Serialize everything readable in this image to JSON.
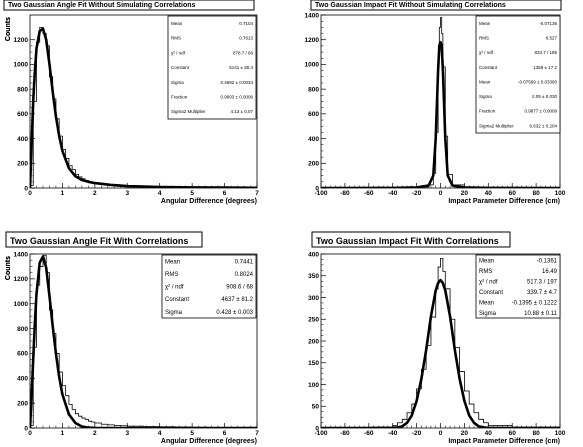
{
  "chart_data": [
    {
      "type": "histogram",
      "title": "Two Gaussian Angle Fit Without Simulating Correlations",
      "xlabel": "Angular Difference (degrees)",
      "ylabel": "Counts",
      "xlim": [
        0,
        7
      ],
      "ylim": [
        0,
        1400
      ],
      "xticks": [
        0,
        1,
        2,
        3,
        4,
        5,
        6,
        7
      ],
      "yticks": [
        0,
        200,
        400,
        600,
        800,
        1000,
        1200
      ],
      "series": [
        {
          "name": "data",
          "x": [
            0.0,
            0.1,
            0.2,
            0.3,
            0.4,
            0.5,
            0.6,
            0.7,
            0.8,
            0.9,
            1.0,
            1.1,
            1.2,
            1.3,
            1.4,
            1.5,
            1.6,
            1.7,
            1.8,
            1.9,
            2.0,
            2.2,
            2.4,
            2.6,
            2.8,
            3.0,
            3.5,
            4.0,
            4.5,
            5.0,
            5.5,
            6.0,
            6.5,
            7.0
          ],
          "y": [
            20,
            700,
            1180,
            1300,
            1250,
            1150,
            900,
            720,
            560,
            420,
            310,
            240,
            180,
            150,
            110,
            90,
            75,
            60,
            50,
            45,
            38,
            30,
            25,
            20,
            17,
            15,
            12,
            10,
            8,
            6,
            5,
            4,
            3,
            2
          ]
        },
        {
          "name": "fit",
          "x": [
            0.0,
            0.05,
            0.1,
            0.15,
            0.2,
            0.3,
            0.4,
            0.5,
            0.6,
            0.7,
            0.8,
            0.9,
            1.0,
            1.2,
            1.4,
            1.6,
            1.8,
            2.0,
            2.5,
            3.0,
            4.0,
            5.0,
            6.0,
            7.0
          ],
          "y": [
            0,
            350,
            700,
            950,
            1130,
            1270,
            1290,
            1200,
            1000,
            780,
            580,
            420,
            300,
            160,
            95,
            65,
            50,
            40,
            25,
            15,
            8,
            5,
            3,
            2
          ]
        }
      ],
      "stats": [
        {
          "label": "Mean",
          "value": "0.7104"
        },
        {
          "label": "RMS",
          "value": "0.7613"
        },
        {
          "label": "χ² / ndf",
          "value": "878.7 / 66"
        },
        {
          "label": "Constant",
          "value": "5141 ± 80.4"
        },
        {
          "label": "Sigma",
          "value": "0.4692 ± 0.0034"
        },
        {
          "label": "Fraction",
          "value": "0.9603 ± 0.0006"
        },
        {
          "label": "Sigma2 Multiplier",
          "value": "4.13 ± 0.07"
        }
      ]
    },
    {
      "type": "histogram",
      "title": "Two Gaussian Impact Fit Without Simulating Correlations",
      "xlabel": "Impact Parameter Difference (cm)",
      "ylabel": "Counts",
      "xlim": [
        -100,
        100
      ],
      "ylim": [
        0,
        1400
      ],
      "xticks": [
        -100,
        -80,
        -60,
        -40,
        -20,
        0,
        20,
        40,
        60,
        80,
        100
      ],
      "yticks": [
        0,
        200,
        400,
        600,
        800,
        1000,
        1200,
        1400
      ],
      "series": [
        {
          "name": "data",
          "x": [
            -100,
            -40,
            -20,
            -10,
            -6,
            -4,
            -2,
            -1,
            0,
            1,
            2,
            4,
            6,
            10,
            20,
            40,
            100
          ],
          "y": [
            2,
            3,
            8,
            25,
            120,
            450,
            1050,
            1300,
            1380,
            1250,
            980,
            420,
            110,
            25,
            8,
            3,
            2
          ]
        },
        {
          "name": "fit",
          "x": [
            -100,
            -40,
            -20,
            -10,
            -6,
            -4,
            -2,
            -1,
            0,
            1,
            2,
            4,
            6,
            10,
            20,
            40,
            100
          ],
          "y": [
            0,
            1,
            5,
            20,
            100,
            400,
            950,
            1150,
            1180,
            1150,
            950,
            400,
            100,
            20,
            5,
            1,
            0
          ]
        }
      ],
      "stats": [
        {
          "label": "Mean",
          "value": "-0.07136"
        },
        {
          "label": "RMS",
          "value": "6.527"
        },
        {
          "label": "χ² / ndf",
          "value": "833.7 / 185"
        },
        {
          "label": "Constant",
          "value": "1358 ± 17.2"
        },
        {
          "label": "Mean",
          "value": "-0.07569 ± 0.03360"
        },
        {
          "label": "Sigma",
          "value": "2.09 ± 0.030"
        },
        {
          "label": "Fraction",
          "value": "0.9877 ± 0.0009"
        },
        {
          "label": "Sigma2 Multiplier",
          "value": "6.632 ± 0.204"
        }
      ]
    },
    {
      "type": "histogram",
      "title": "Two Gaussian Angle Fit With Correlations",
      "xlabel": "Angular Difference (degrees)",
      "ylabel": "Counts",
      "xlim": [
        0,
        7
      ],
      "ylim": [
        0,
        1400
      ],
      "xticks": [
        0,
        1,
        2,
        3,
        4,
        5,
        6,
        7
      ],
      "yticks": [
        0,
        200,
        400,
        600,
        800,
        1000,
        1200,
        1400
      ],
      "series": [
        {
          "name": "data",
          "x": [
            0.0,
            0.1,
            0.2,
            0.3,
            0.4,
            0.5,
            0.6,
            0.7,
            0.8,
            0.9,
            1.0,
            1.1,
            1.2,
            1.3,
            1.4,
            1.5,
            1.6,
            1.7,
            1.8,
            1.9,
            2.0,
            2.2,
            2.4,
            2.6,
            2.8,
            3.0,
            3.5,
            4.0,
            4.5,
            5.0,
            5.5,
            6.0,
            6.5,
            7.0
          ],
          "y": [
            20,
            650,
            1150,
            1300,
            1390,
            1250,
            950,
            760,
            600,
            450,
            340,
            260,
            190,
            150,
            115,
            95,
            80,
            70,
            55,
            48,
            40,
            30,
            25,
            20,
            18,
            15,
            12,
            10,
            8,
            6,
            5,
            4,
            3,
            2
          ]
        },
        {
          "name": "fit",
          "x": [
            0.0,
            0.05,
            0.1,
            0.15,
            0.2,
            0.3,
            0.4,
            0.5,
            0.6,
            0.7,
            0.8,
            0.9,
            1.0,
            1.2,
            1.4,
            1.6,
            1.8,
            2.0,
            2.5,
            3.0,
            4.0,
            5.0,
            6.0,
            7.0
          ],
          "y": [
            0,
            250,
            550,
            850,
            1080,
            1330,
            1380,
            1290,
            1060,
            820,
            600,
            410,
            270,
            110,
            40,
            12,
            3,
            1,
            0,
            0,
            0,
            0,
            0,
            0
          ]
        }
      ],
      "stats": [
        {
          "label": "Mean",
          "value": "0.7441"
        },
        {
          "label": "RMS",
          "value": "0.8024"
        },
        {
          "label": "χ² / ndf",
          "value": "908.6 / 68"
        },
        {
          "label": "Constant",
          "value": "4637 ± 81.2"
        },
        {
          "label": "Sigma",
          "value": "0.428 ± 0.003"
        }
      ]
    },
    {
      "type": "histogram",
      "title": "Two Gaussian Impact Fit With Correlations",
      "xlabel": "Impact Parameter Difference (cm)",
      "ylabel": "Counts",
      "xlim": [
        -100,
        100
      ],
      "ylim": [
        0,
        400
      ],
      "xticks": [
        -100,
        -80,
        -60,
        -40,
        -20,
        0,
        20,
        40,
        60,
        80,
        100
      ],
      "yticks": [
        0,
        50,
        100,
        150,
        200,
        250,
        300,
        350,
        400
      ],
      "series": [
        {
          "name": "data",
          "x": [
            -100,
            -60,
            -40,
            -36,
            -32,
            -28,
            -24,
            -20,
            -16,
            -12,
            -8,
            -4,
            -2,
            0,
            2,
            4,
            8,
            12,
            16,
            20,
            24,
            28,
            32,
            36,
            40,
            60,
            100
          ],
          "y": [
            0,
            2,
            6,
            12,
            20,
            35,
            55,
            90,
            135,
            190,
            255,
            320,
            370,
            390,
            360,
            320,
            250,
            185,
            130,
            85,
            55,
            35,
            20,
            12,
            6,
            2,
            0
          ]
        },
        {
          "name": "fit",
          "x": [
            -100,
            -60,
            -40,
            -36,
            -32,
            -28,
            -24,
            -20,
            -16,
            -12,
            -8,
            -4,
            -2,
            0,
            2,
            4,
            8,
            12,
            16,
            20,
            24,
            28,
            32,
            36,
            40,
            60,
            100
          ],
          "y": [
            0,
            0,
            0.4,
            1.4,
            4,
            12,
            29,
            62,
            113,
            180,
            256,
            316,
            333,
            340,
            333,
            316,
            256,
            180,
            113,
            62,
            29,
            12,
            4,
            1.4,
            0.4,
            0,
            0
          ]
        }
      ],
      "stats": [
        {
          "label": "Mean",
          "value": "-0.1361"
        },
        {
          "label": "RMS",
          "value": "16.49"
        },
        {
          "label": "χ² / ndf",
          "value": "517.3 / 197"
        },
        {
          "label": "Constant",
          "value": "339.7 ± 4.7"
        },
        {
          "label": "Mean",
          "value": "-0.1395 ± 0.1222"
        },
        {
          "label": "Sigma",
          "value": "10.88 ± 0.11"
        }
      ]
    }
  ]
}
